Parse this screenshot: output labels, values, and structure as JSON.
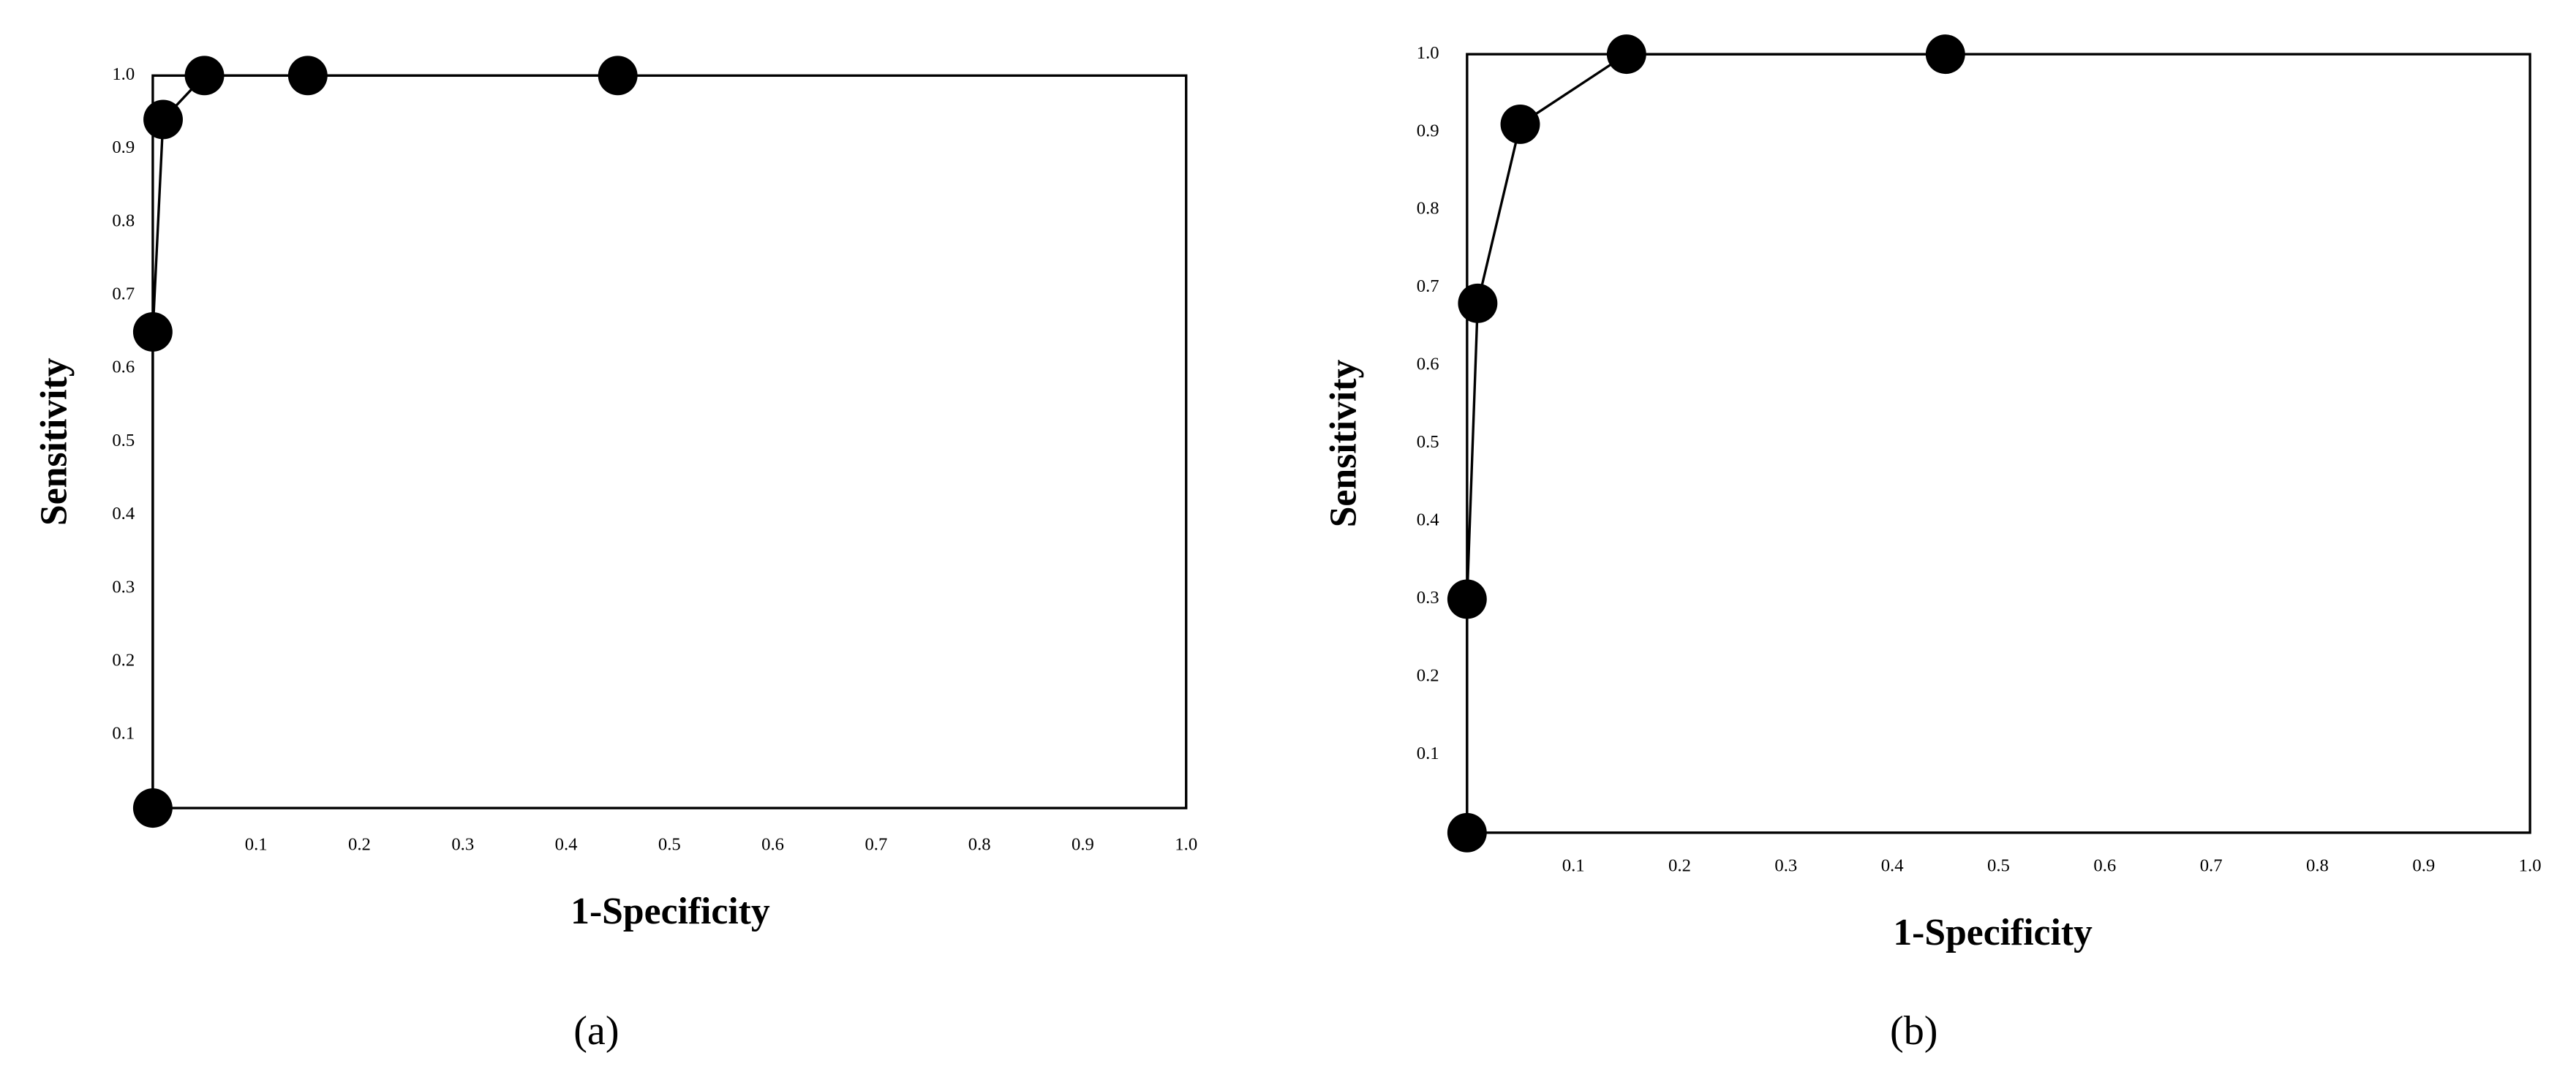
{
  "chart_data": [
    {
      "type": "line",
      "caption": "(a)",
      "x_label": "1-Specificity",
      "y_label": "Sensitivity",
      "x": [
        0,
        0,
        0.01,
        0.05,
        0.15,
        0.45
      ],
      "values": [
        0,
        0.65,
        0.94,
        1.0,
        1.0,
        1.0
      ],
      "color": "#000000",
      "xlim": [
        0,
        1
      ],
      "ylim": [
        0,
        1
      ],
      "xticks": [
        0.1,
        0.2,
        0.3,
        0.4,
        0.5,
        0.6,
        0.7,
        0.8,
        0.9,
        {
          "value": 1,
          "label": "1.0"
        }
      ],
      "yticks": [
        0.1,
        0.2,
        0.3,
        0.4,
        0.5,
        0.6,
        0.7,
        0.8,
        0.9,
        {
          "value": 1,
          "label": "1.0"
        }
      ],
      "grid": false
    },
    {
      "type": "line",
      "caption": "(b)",
      "x_label": "1-Specificity",
      "y_label": "Sensitivity",
      "x": [
        0,
        0,
        0.01,
        0.05,
        0.15,
        0.45
      ],
      "values": [
        0,
        0.3,
        0.68,
        0.91,
        1.0,
        1.0
      ],
      "color": "#000000",
      "xlim": [
        0,
        1
      ],
      "ylim": [
        0,
        1
      ],
      "xticks": [
        0.1,
        0.2,
        0.3,
        0.4,
        0.5,
        0.6,
        0.7,
        0.8,
        0.9,
        {
          "value": 1,
          "label": "1.0"
        }
      ],
      "yticks": [
        0.1,
        0.2,
        0.3,
        0.4,
        0.5,
        0.6,
        0.7,
        0.8,
        0.9,
        {
          "value": 1,
          "label": "1.0"
        }
      ],
      "grid": false
    }
  ]
}
